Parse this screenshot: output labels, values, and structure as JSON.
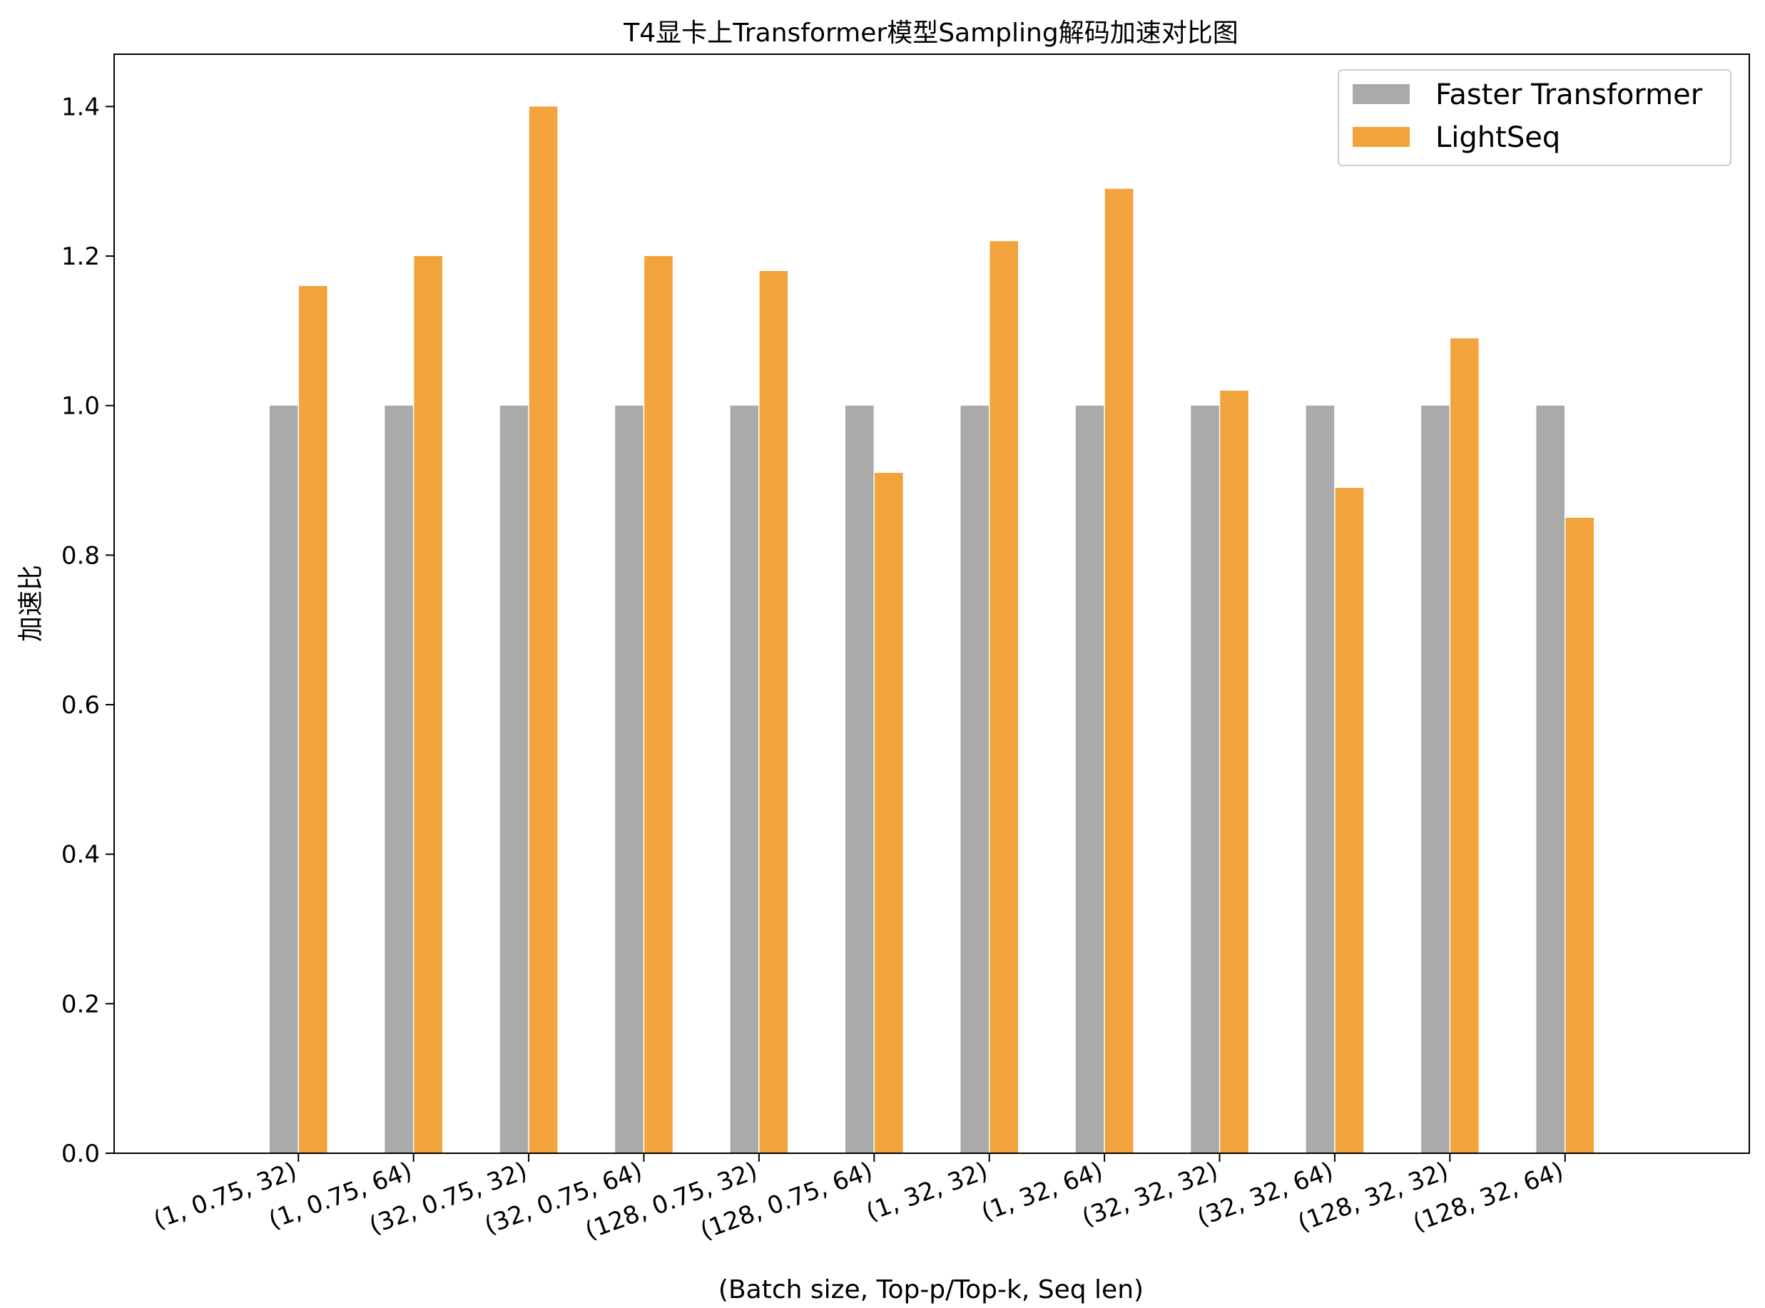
{
  "chart_data": {
    "type": "bar",
    "title": "T4显卡上Transformer模型Sampling解码加速对比图",
    "xlabel": "(Batch size, Top-p/Top-k, Seq len)",
    "ylabel": "加速比",
    "categories": [
      "(1, 0.75, 32)",
      "(1, 0.75, 64)",
      "(32, 0.75, 32)",
      "(32, 0.75, 64)",
      "(128, 0.75, 32)",
      "(128, 0.75, 64)",
      "(1, 32, 32)",
      "(1, 32, 64)",
      "(32, 32, 32)",
      "(32, 32, 64)",
      "(128, 32, 32)",
      "(128, 32, 64)"
    ],
    "series": [
      {
        "name": "Faster Transformer",
        "color": "#aaaaaa",
        "values": [
          1.0,
          1.0,
          1.0,
          1.0,
          1.0,
          1.0,
          1.0,
          1.0,
          1.0,
          1.0,
          1.0,
          1.0
        ]
      },
      {
        "name": "LightSeq",
        "color": "#f2a33b",
        "values": [
          1.16,
          1.2,
          1.4,
          1.2,
          1.18,
          0.91,
          1.22,
          1.29,
          1.02,
          0.89,
          1.09,
          0.85
        ]
      }
    ],
    "ylim": [
      0,
      1.47
    ],
    "yticks": [
      "0.0",
      "0.2",
      "0.4",
      "0.6",
      "0.8",
      "1.0",
      "1.2",
      "1.4"
    ],
    "legend_position": "top-right",
    "grid": false
  }
}
